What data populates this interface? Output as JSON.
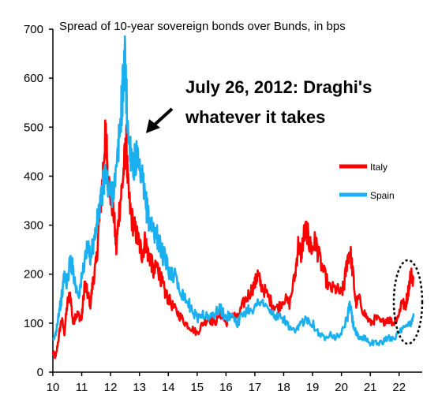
{
  "chart_data": {
    "type": "line",
    "title": "Spread of 10-year sovereign bonds over Bunds, in bps",
    "xlabel": "",
    "ylabel": "",
    "xlim": [
      10,
      22.8
    ],
    "ylim": [
      0,
      700
    ],
    "x_ticks": [
      "10",
      "11",
      "12",
      "13",
      "14",
      "15",
      "16",
      "17",
      "18",
      "19",
      "20",
      "21",
      "22"
    ],
    "y_ticks": [
      "0",
      "100",
      "200",
      "300",
      "400",
      "500",
      "600",
      "700"
    ],
    "grid": false,
    "legend_position": "right",
    "annotation": {
      "line1": "July 26, 2012: Draghi's",
      "line2": "whatever it takes"
    },
    "series": [
      {
        "name": "Italy",
        "color": "#ff0000",
        "points": [
          [
            10.0,
            40
          ],
          [
            10.1,
            30
          ],
          [
            10.2,
            70
          ],
          [
            10.3,
            110
          ],
          [
            10.4,
            80
          ],
          [
            10.5,
            140
          ],
          [
            10.6,
            160
          ],
          [
            10.7,
            100
          ],
          [
            10.8,
            120
          ],
          [
            10.9,
            115
          ],
          [
            11.0,
            110
          ],
          [
            11.1,
            180
          ],
          [
            11.2,
            160
          ],
          [
            11.3,
            140
          ],
          [
            11.4,
            190
          ],
          [
            11.5,
            220
          ],
          [
            11.6,
            300
          ],
          [
            11.7,
            380
          ],
          [
            11.8,
            470
          ],
          [
            11.85,
            485
          ],
          [
            11.9,
            400
          ],
          [
            12.0,
            360
          ],
          [
            12.1,
            330
          ],
          [
            12.2,
            250
          ],
          [
            12.3,
            330
          ],
          [
            12.4,
            380
          ],
          [
            12.5,
            440
          ],
          [
            12.55,
            465
          ],
          [
            12.6,
            380
          ],
          [
            12.7,
            320
          ],
          [
            12.8,
            300
          ],
          [
            12.9,
            280
          ],
          [
            13.0,
            260
          ],
          [
            13.1,
            240
          ],
          [
            13.2,
            270
          ],
          [
            13.3,
            240
          ],
          [
            13.4,
            230
          ],
          [
            13.5,
            200
          ],
          [
            13.6,
            220
          ],
          [
            13.7,
            200
          ],
          [
            13.8,
            180
          ],
          [
            13.9,
            160
          ],
          [
            14.0,
            150
          ],
          [
            14.2,
            130
          ],
          [
            14.4,
            115
          ],
          [
            14.6,
            100
          ],
          [
            14.8,
            90
          ],
          [
            15.0,
            80
          ],
          [
            15.2,
            100
          ],
          [
            15.4,
            110
          ],
          [
            15.6,
            100
          ],
          [
            15.8,
            120
          ],
          [
            16.0,
            100
          ],
          [
            16.2,
            120
          ],
          [
            16.4,
            110
          ],
          [
            16.6,
            140
          ],
          [
            16.8,
            160
          ],
          [
            17.0,
            180
          ],
          [
            17.1,
            200
          ],
          [
            17.2,
            180
          ],
          [
            17.4,
            160
          ],
          [
            17.6,
            140
          ],
          [
            17.8,
            130
          ],
          [
            18.0,
            150
          ],
          [
            18.2,
            140
          ],
          [
            18.4,
            200
          ],
          [
            18.5,
            260
          ],
          [
            18.6,
            240
          ],
          [
            18.7,
            280
          ],
          [
            18.8,
            290
          ],
          [
            18.9,
            260
          ],
          [
            19.0,
            250
          ],
          [
            19.1,
            270
          ],
          [
            19.2,
            240
          ],
          [
            19.4,
            200
          ],
          [
            19.6,
            170
          ],
          [
            19.8,
            170
          ],
          [
            20.0,
            160
          ],
          [
            20.1,
            180
          ],
          [
            20.2,
            230
          ],
          [
            20.3,
            250
          ],
          [
            20.4,
            200
          ],
          [
            20.5,
            140
          ],
          [
            20.6,
            150
          ],
          [
            20.8,
            120
          ],
          [
            21.0,
            100
          ],
          [
            21.2,
            110
          ],
          [
            21.4,
            100
          ],
          [
            21.6,
            110
          ],
          [
            21.8,
            100
          ],
          [
            22.0,
            120
          ],
          [
            22.1,
            150
          ],
          [
            22.2,
            130
          ],
          [
            22.3,
            160
          ],
          [
            22.4,
            200
          ],
          [
            22.5,
            190
          ]
        ]
      },
      {
        "name": "Spain",
        "color": "#1ab0f0",
        "points": [
          [
            10.0,
            60
          ],
          [
            10.1,
            80
          ],
          [
            10.2,
            120
          ],
          [
            10.3,
            150
          ],
          [
            10.4,
            200
          ],
          [
            10.5,
            180
          ],
          [
            10.6,
            230
          ],
          [
            10.7,
            210
          ],
          [
            10.8,
            170
          ],
          [
            10.9,
            160
          ],
          [
            11.0,
            190
          ],
          [
            11.1,
            230
          ],
          [
            11.2,
            250
          ],
          [
            11.3,
            240
          ],
          [
            11.4,
            260
          ],
          [
            11.5,
            290
          ],
          [
            11.6,
            330
          ],
          [
            11.7,
            360
          ],
          [
            11.8,
            410
          ],
          [
            11.9,
            380
          ],
          [
            12.0,
            360
          ],
          [
            12.1,
            380
          ],
          [
            12.2,
            400
          ],
          [
            12.3,
            480
          ],
          [
            12.4,
            560
          ],
          [
            12.45,
            600
          ],
          [
            12.5,
            640
          ],
          [
            12.55,
            560
          ],
          [
            12.6,
            490
          ],
          [
            12.7,
            450
          ],
          [
            12.8,
            420
          ],
          [
            12.9,
            440
          ],
          [
            13.0,
            400
          ],
          [
            13.1,
            390
          ],
          [
            13.2,
            350
          ],
          [
            13.3,
            320
          ],
          [
            13.4,
            300
          ],
          [
            13.5,
            290
          ],
          [
            13.6,
            280
          ],
          [
            13.7,
            260
          ],
          [
            13.8,
            240
          ],
          [
            13.9,
            230
          ],
          [
            14.0,
            210
          ],
          [
            14.2,
            200
          ],
          [
            14.4,
            170
          ],
          [
            14.6,
            150
          ],
          [
            14.8,
            130
          ],
          [
            15.0,
            110
          ],
          [
            15.2,
            120
          ],
          [
            15.4,
            110
          ],
          [
            15.6,
            120
          ],
          [
            15.8,
            130
          ],
          [
            16.0,
            110
          ],
          [
            16.2,
            120
          ],
          [
            16.4,
            100
          ],
          [
            16.6,
            120
          ],
          [
            16.8,
            130
          ],
          [
            17.0,
            130
          ],
          [
            17.2,
            150
          ],
          [
            17.4,
            130
          ],
          [
            17.6,
            120
          ],
          [
            17.8,
            110
          ],
          [
            18.0,
            110
          ],
          [
            18.2,
            90
          ],
          [
            18.4,
            80
          ],
          [
            18.6,
            100
          ],
          [
            18.8,
            110
          ],
          [
            19.0,
            100
          ],
          [
            19.2,
            80
          ],
          [
            19.4,
            70
          ],
          [
            19.6,
            80
          ],
          [
            19.8,
            70
          ],
          [
            20.0,
            80
          ],
          [
            20.2,
            110
          ],
          [
            20.3,
            140
          ],
          [
            20.4,
            100
          ],
          [
            20.5,
            80
          ],
          [
            20.6,
            70
          ],
          [
            20.8,
            70
          ],
          [
            21.0,
            60
          ],
          [
            21.2,
            60
          ],
          [
            21.4,
            60
          ],
          [
            21.6,
            70
          ],
          [
            21.8,
            70
          ],
          [
            22.0,
            80
          ],
          [
            22.2,
            90
          ],
          [
            22.4,
            100
          ],
          [
            22.5,
            120
          ]
        ]
      }
    ]
  }
}
